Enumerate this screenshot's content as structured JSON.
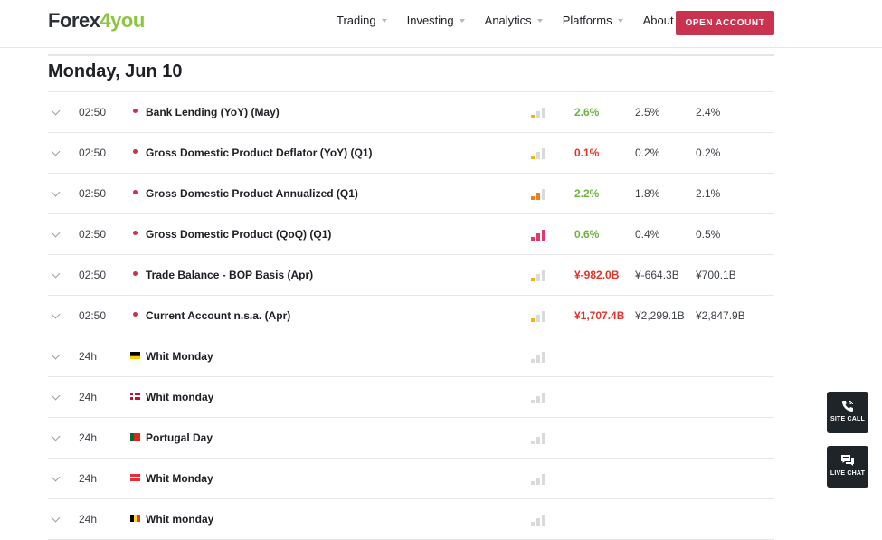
{
  "header": {
    "logo_text": "Forex",
    "logo_accent": "4you",
    "nav": [
      {
        "label": "Trading"
      },
      {
        "label": "Investing"
      },
      {
        "label": "Analytics"
      },
      {
        "label": "Platforms"
      },
      {
        "label": "About Us"
      }
    ],
    "cta_label": "OPEN ACCOUNT"
  },
  "colors": {
    "brand_red": "#c9334f",
    "positive": "#6cb33f",
    "negative": "#e0352b",
    "logo_green": "#8cc63f"
  },
  "calendar": {
    "day_title": "Monday, Jun 10",
    "events": [
      {
        "time": "02:50",
        "marker": "dot",
        "title": "Bank Lending (YoY) (May)",
        "importance": "low",
        "actual": "2.6%",
        "actual_trend": "pos",
        "forecast": "2.5%",
        "previous": "2.4%"
      },
      {
        "time": "02:50",
        "marker": "dot",
        "title": "Gross Domestic Product Deflator (YoY) (Q1)",
        "importance": "low",
        "actual": "0.1%",
        "actual_trend": "neg",
        "forecast": "0.2%",
        "previous": "0.2%"
      },
      {
        "time": "02:50",
        "marker": "dot",
        "title": "Gross Domestic Product Annualized (Q1)",
        "importance": "med",
        "actual": "2.2%",
        "actual_trend": "pos",
        "forecast": "1.8%",
        "previous": "2.1%"
      },
      {
        "time": "02:50",
        "marker": "dot",
        "title": "Gross Domestic Product (QoQ) (Q1)",
        "importance": "high",
        "actual": "0.6%",
        "actual_trend": "pos",
        "forecast": "0.4%",
        "previous": "0.5%"
      },
      {
        "time": "02:50",
        "marker": "dot",
        "title": "Trade Balance - BOP Basis (Apr)",
        "importance": "low",
        "actual": "¥-982.0B",
        "actual_trend": "neg",
        "forecast": "¥-664.3B",
        "previous": "¥700.1B"
      },
      {
        "time": "02:50",
        "marker": "dot",
        "title": "Current Account n.s.a. (Apr)",
        "importance": "low",
        "actual": "¥1,707.4B",
        "actual_trend": "neg",
        "forecast": "¥2,299.1B",
        "previous": "¥2,847.9B"
      },
      {
        "time": "24h",
        "marker": "flag-de",
        "title": "Whit Monday",
        "importance": "none",
        "actual": "",
        "actual_trend": "",
        "forecast": "",
        "previous": ""
      },
      {
        "time": "24h",
        "marker": "flag-dk",
        "title": "Whit monday",
        "importance": "none",
        "actual": "",
        "actual_trend": "",
        "forecast": "",
        "previous": ""
      },
      {
        "time": "24h",
        "marker": "flag-pt",
        "title": "Portugal Day",
        "importance": "none",
        "actual": "",
        "actual_trend": "",
        "forecast": "",
        "previous": ""
      },
      {
        "time": "24h",
        "marker": "flag-at",
        "title": "Whit Monday",
        "importance": "none",
        "actual": "",
        "actual_trend": "",
        "forecast": "",
        "previous": ""
      },
      {
        "time": "24h",
        "marker": "flag-be",
        "title": "Whit monday",
        "importance": "none",
        "actual": "",
        "actual_trend": "",
        "forecast": "",
        "previous": ""
      }
    ]
  },
  "side_buttons": {
    "site_call": {
      "label": "SITE CALL",
      "icon": "phone-icon"
    },
    "live_chat": {
      "label": "LIVE CHAT",
      "icon": "chat-bubbles-icon"
    }
  }
}
